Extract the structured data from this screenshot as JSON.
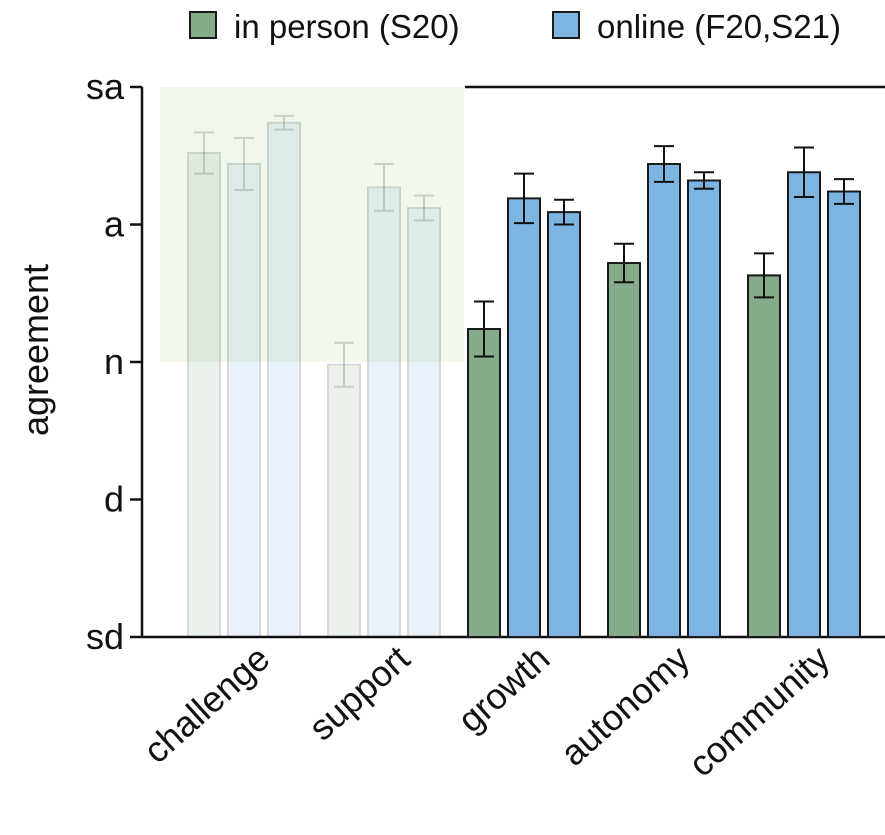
{
  "chart_data": {
    "type": "bar",
    "ylabel": "agreement",
    "ylim": [
      1,
      5
    ],
    "yticks": [
      {
        "value": 5,
        "label": "sa"
      },
      {
        "value": 4,
        "label": "a"
      },
      {
        "value": 3,
        "label": "n"
      },
      {
        "value": 2,
        "label": "d"
      },
      {
        "value": 1,
        "label": "sd"
      }
    ],
    "categories": [
      "challenge",
      "support",
      "growth",
      "autonomy",
      "community"
    ],
    "legend": {
      "position": "top"
    },
    "faded_categories": [
      "challenge",
      "support"
    ],
    "highlight_region": {
      "categories": [
        "challenge",
        "support"
      ],
      "y_from": 3,
      "y_to": 5,
      "color": "#eaf3e3"
    },
    "series": [
      {
        "name": "in person (S20)",
        "color": "#85ab8a",
        "values": [
          4.52,
          null,
          3.24,
          3.72,
          3.63
        ],
        "errors": [
          0.15,
          null,
          0.2,
          0.14,
          0.16
        ]
      },
      {
        "name": null,
        "color": "#85ab8a",
        "values": [
          null,
          2.98,
          null,
          null,
          null
        ],
        "errors": [
          null,
          0.16,
          null,
          null,
          null
        ]
      },
      {
        "name": "online (F20,S21)",
        "color": "#7eb4e2",
        "values": [
          4.44,
          4.27,
          4.19,
          4.44,
          4.38
        ],
        "errors": [
          0.19,
          0.17,
          0.18,
          0.13,
          0.18
        ]
      },
      {
        "name": null,
        "color": "#7eb4e2",
        "values": [
          4.74,
          4.12,
          4.09,
          4.32,
          4.24
        ],
        "errors": [
          0.05,
          0.09,
          0.09,
          0.06,
          0.09
        ]
      }
    ]
  }
}
